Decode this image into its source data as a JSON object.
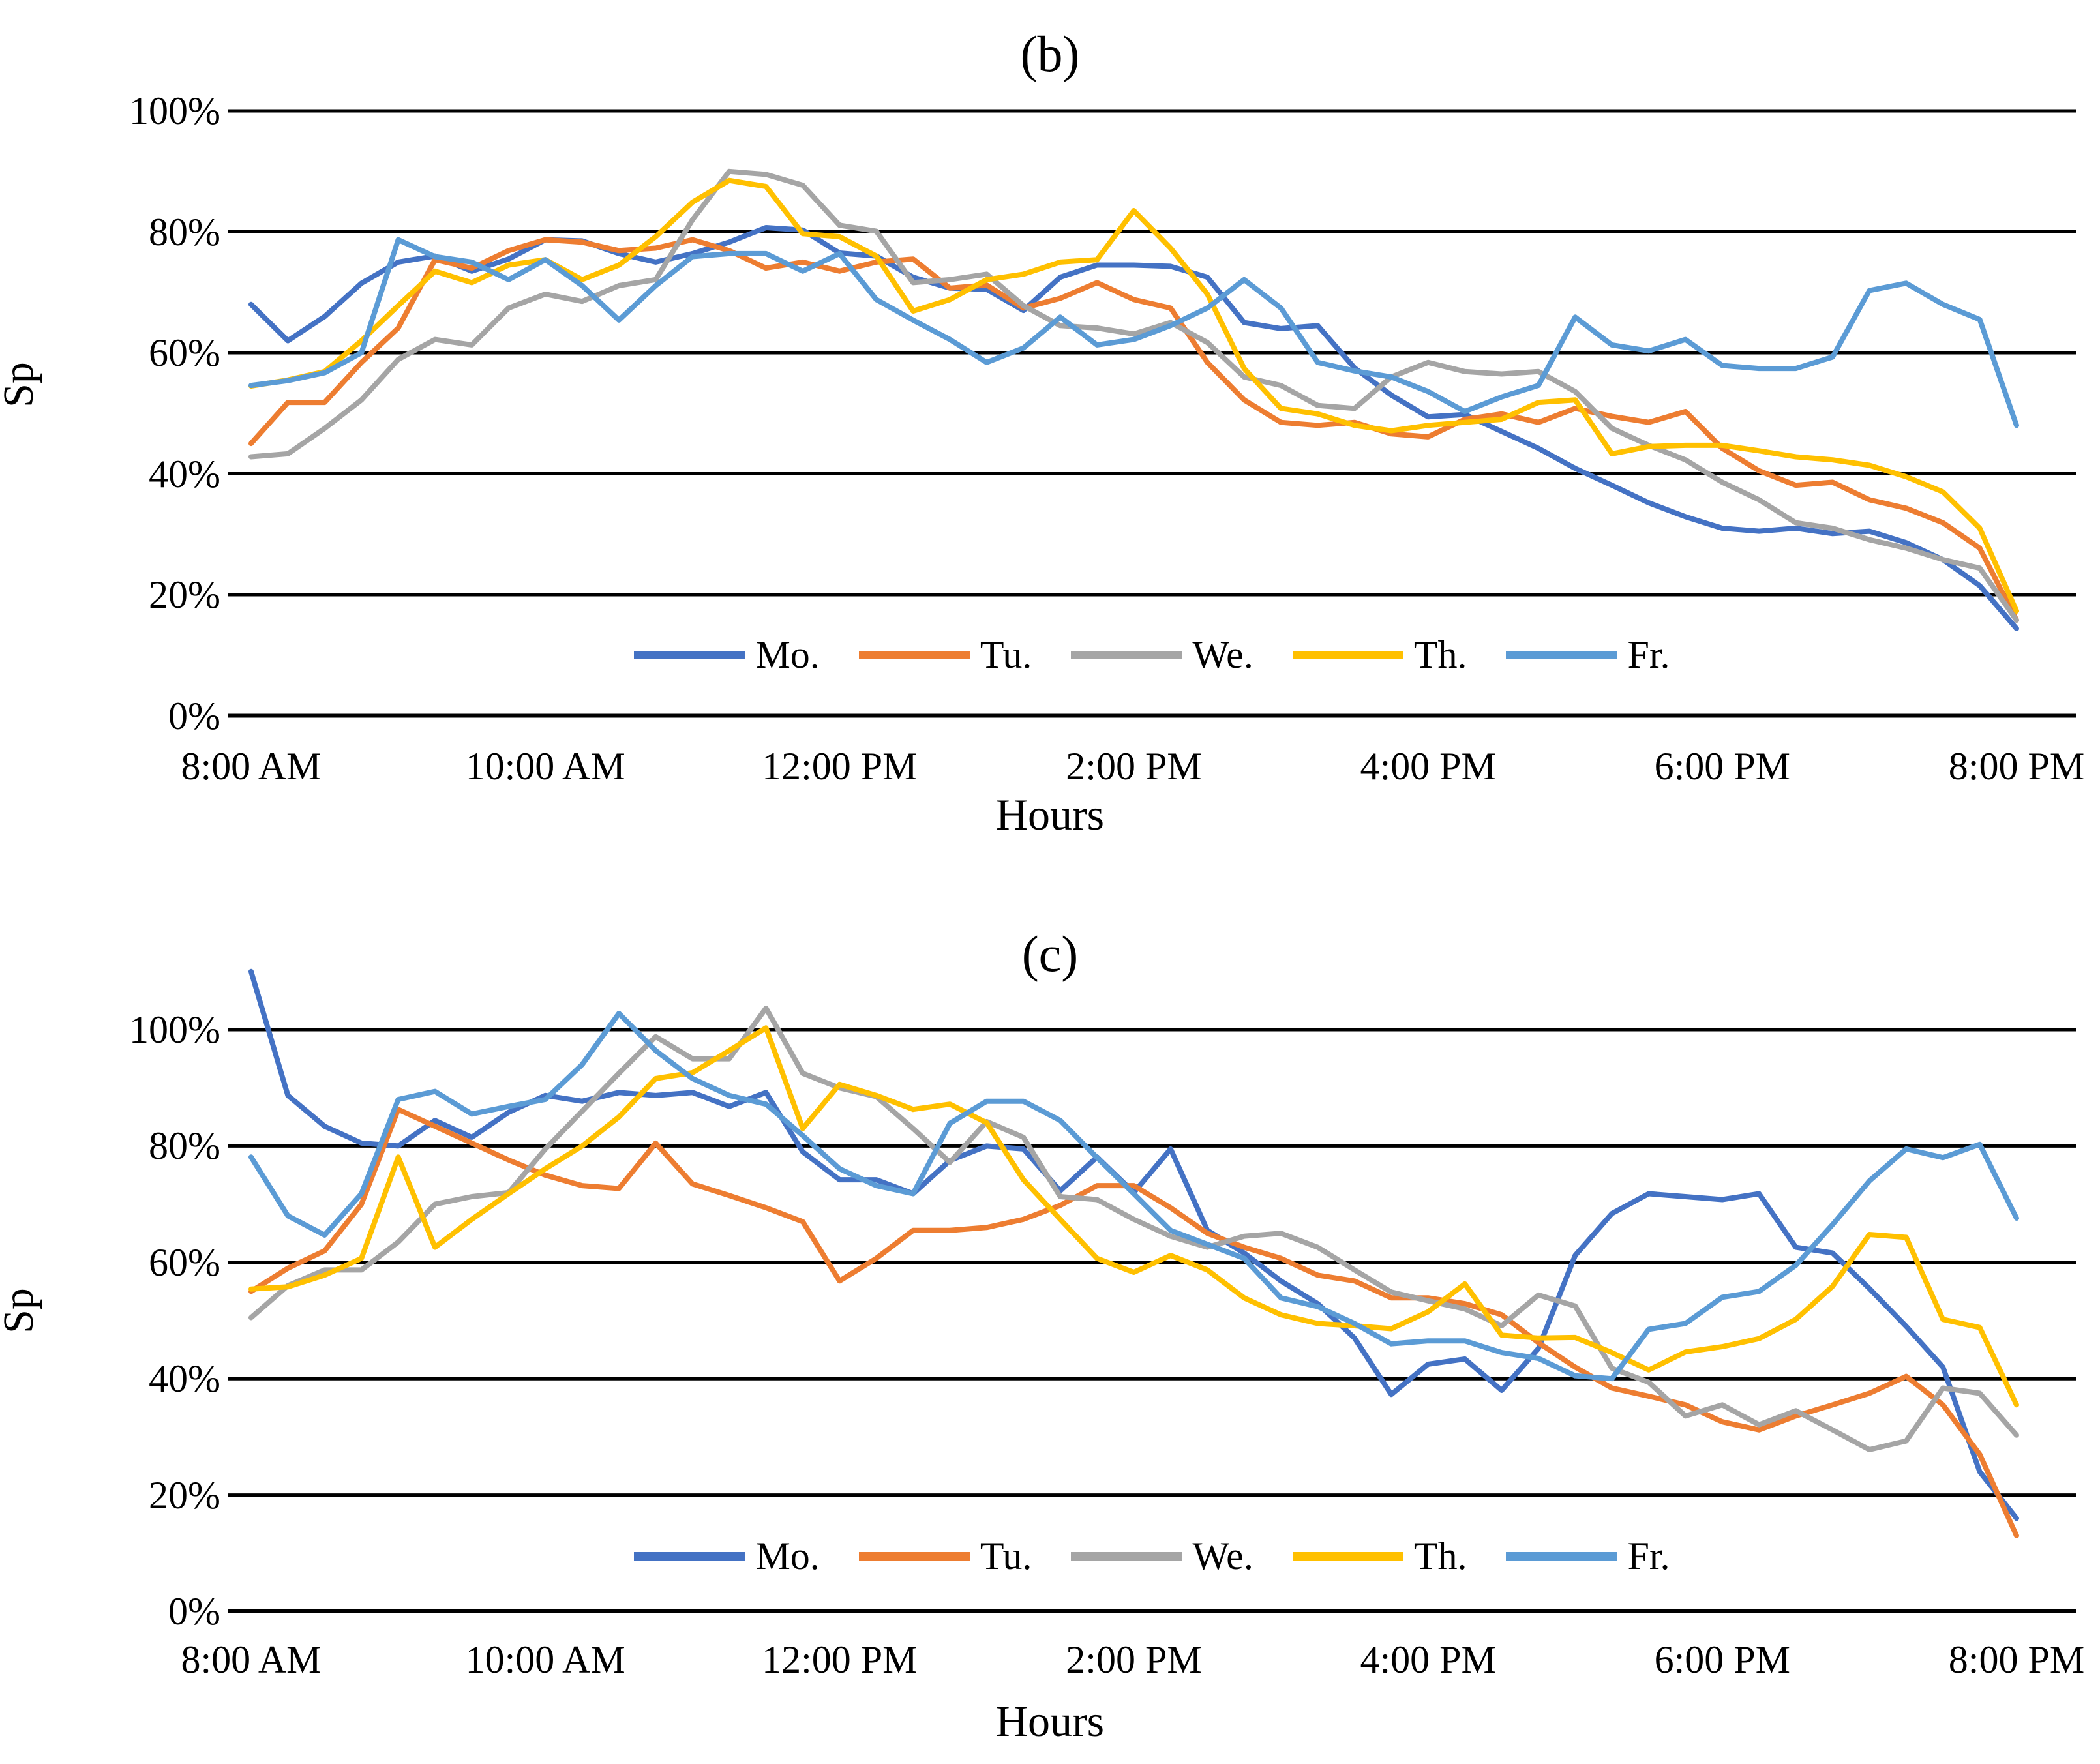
{
  "page": {
    "background": "#ffffff"
  },
  "series_colors": {
    "Mo.": "#4472C4",
    "Tu.": "#ED7D31",
    "We.": "#A5A5A5",
    "Th.": "#FFC000",
    "Fr.": "#5B9BD5"
  },
  "chart_b": {
    "title": "(b)",
    "ylabel": "Sp",
    "xlabel": "Hours"
  },
  "chart_c": {
    "title": "(c)",
    "ylabel": "Sp",
    "xlabel": "Hours"
  },
  "chart_data": [
    {
      "type": "line",
      "id": "b",
      "title": "(b)",
      "xlabel": "Hours",
      "ylabel": "Sp",
      "ylim": [
        0,
        100
      ],
      "y_tick_labels": [
        "100%",
        "80%",
        "60%",
        "40%",
        "20%",
        "0%"
      ],
      "x_tick_labels": [
        "8:00 AM",
        "10:00 AM",
        "12:00 PM",
        "2:00 PM",
        "4:00 PM",
        "6:00 PM",
        "8:00 PM"
      ],
      "grid": "horizontal",
      "legend_position": "inside-bottom",
      "x": [
        "8:00 AM",
        "8:15 AM",
        "8:30 AM",
        "8:45 AM",
        "9:00 AM",
        "9:15 AM",
        "9:30 AM",
        "9:45 AM",
        "10:00 AM",
        "10:15 AM",
        "10:30 AM",
        "10:45 AM",
        "11:00 AM",
        "11:15 AM",
        "11:30 AM",
        "11:45 AM",
        "12:00 PM",
        "12:15 PM",
        "12:30 PM",
        "12:45 PM",
        "1:00 PM",
        "1:15 PM",
        "1:30 PM",
        "1:45 PM",
        "2:00 PM",
        "2:15 PM",
        "2:30 PM",
        "2:45 PM",
        "3:00 PM",
        "3:15 PM",
        "3:30 PM",
        "3:45 PM",
        "4:00 PM",
        "4:15 PM",
        "4:30 PM",
        "4:45 PM",
        "5:00 PM",
        "5:15 PM",
        "5:30 PM",
        "5:45 PM",
        "6:00 PM",
        "6:15 PM",
        "6:30 PM",
        "6:45 PM",
        "7:00 PM",
        "7:15 PM",
        "7:30 PM",
        "7:45 PM",
        "8:00 PM"
      ],
      "series": [
        {
          "name": "Mo.",
          "color": "#4472C4",
          "values": [
            68,
            62,
            66,
            71.5,
            75,
            76,
            73.5,
            75.5,
            78.7,
            78.5,
            76.4,
            75,
            76.4,
            78.3,
            80.7,
            80.3,
            76.5,
            76,
            72.5,
            70.7,
            70.5,
            67,
            72.5,
            74.5,
            74.5,
            74.3,
            72.5,
            65,
            64,
            64.5,
            57.5,
            53,
            49.4,
            49.8,
            47,
            44.2,
            40.9,
            38.1,
            35.2,
            32.9,
            31,
            30.5,
            31,
            30.1,
            30.5,
            28.6,
            25.8,
            21.5,
            14.4
          ]
        },
        {
          "name": "Tu.",
          "color": "#ED7D31",
          "values": [
            45,
            51.8,
            51.8,
            58.4,
            64.1,
            75.4,
            74,
            76.9,
            78.7,
            78.3,
            76.9,
            77.3,
            78.7,
            76.9,
            74,
            75,
            73.5,
            75,
            75.5,
            70.7,
            71.2,
            67.4,
            69,
            71.6,
            68.8,
            67.4,
            58.4,
            52.2,
            48.5,
            48,
            48.5,
            46.6,
            46.1,
            49,
            49.9,
            48.5,
            50.8,
            49.5,
            48.5,
            50.3,
            44.2,
            40.5,
            38.1,
            38.6,
            35.7,
            34.3,
            31.9,
            27.7,
            15.8
          ]
        },
        {
          "name": "We.",
          "color": "#A5A5A5",
          "values": [
            42.8,
            43.3,
            47.5,
            52.2,
            58.9,
            62.2,
            61.3,
            67.4,
            69.7,
            68.5,
            71.1,
            72.1,
            82,
            90,
            89.5,
            87.7,
            81.1,
            80.1,
            71.6,
            72.1,
            73,
            67.8,
            64.5,
            64.1,
            63.1,
            65,
            61.7,
            56,
            54.6,
            51.3,
            50.8,
            56,
            58.4,
            56.9,
            56.5,
            56.9,
            53.6,
            47.5,
            44.7,
            42.3,
            38.6,
            35.7,
            31.9,
            31,
            29.1,
            27.7,
            25.8,
            24.4,
            15.8
          ]
        },
        {
          "name": "Th.",
          "color": "#FFC000",
          "values": [
            54.5,
            55.5,
            56.9,
            62,
            67.8,
            73.5,
            71.6,
            74.5,
            75.4,
            72.1,
            74.5,
            79.2,
            84.9,
            88.5,
            87.5,
            79.7,
            79.2,
            76,
            66.9,
            68.8,
            72.1,
            73,
            75,
            75.4,
            83.5,
            77.3,
            69.7,
            57.4,
            50.8,
            49.9,
            48,
            47.1,
            48,
            48.5,
            49,
            51.8,
            52.2,
            43.3,
            44.5,
            44.7,
            44.7,
            43.8,
            42.8,
            42.3,
            41.4,
            39.5,
            37,
            31,
            17.3
          ]
        },
        {
          "name": "Fr.",
          "color": "#5B9BD5",
          "values": [
            54.6,
            55.4,
            56.7,
            60,
            78.7,
            75.9,
            75,
            72.1,
            75.4,
            71.1,
            65.4,
            71.1,
            75.9,
            76.4,
            76.4,
            73.5,
            76.4,
            68.8,
            65.4,
            62.2,
            58.4,
            60.8,
            65.9,
            61.3,
            62.2,
            64.5,
            67.4,
            72.1,
            67.4,
            58.4,
            57,
            56,
            53.6,
            50.3,
            52.7,
            54.6,
            65.9,
            61.3,
            60.3,
            62.2,
            57.9,
            57.4,
            57.4,
            59.3,
            70.3,
            71.5,
            68,
            65.5,
            48
          ]
        }
      ]
    },
    {
      "type": "line",
      "id": "c",
      "title": "(c)",
      "xlabel": "Hours",
      "ylabel": "Sp",
      "ylim": [
        0,
        100
      ],
      "y_tick_labels": [
        "100%",
        "80%",
        "60%",
        "40%",
        "20%",
        "0%"
      ],
      "x_tick_labels": [
        "8:00 AM",
        "10:00 AM",
        "12:00 PM",
        "2:00 PM",
        "4:00 PM",
        "6:00 PM",
        "8:00 PM"
      ],
      "grid": "horizontal",
      "legend_position": "inside-bottom",
      "x": [
        "8:00 AM",
        "8:15 AM",
        "8:30 AM",
        "8:45 AM",
        "9:00 AM",
        "9:15 AM",
        "9:30 AM",
        "9:45 AM",
        "10:00 AM",
        "10:15 AM",
        "10:30 AM",
        "10:45 AM",
        "11:00 AM",
        "11:15 AM",
        "11:30 AM",
        "11:45 AM",
        "12:00 PM",
        "12:15 PM",
        "12:30 PM",
        "12:45 PM",
        "1:00 PM",
        "1:15 PM",
        "1:30 PM",
        "1:45 PM",
        "2:00 PM",
        "2:15 PM",
        "2:30 PM",
        "2:45 PM",
        "3:00 PM",
        "3:15 PM",
        "3:30 PM",
        "3:45 PM",
        "4:00 PM",
        "4:15 PM",
        "4:30 PM",
        "4:45 PM",
        "5:00 PM",
        "5:15 PM",
        "5:30 PM",
        "5:45 PM",
        "6:00 PM",
        "6:15 PM",
        "6:30 PM",
        "6:45 PM",
        "7:00 PM",
        "7:15 PM",
        "7:30 PM",
        "7:45 PM",
        "8:00 PM"
      ],
      "series": [
        {
          "name": "Mo.",
          "color": "#4472C4",
          "values": [
            110,
            88.7,
            83.4,
            80.5,
            80,
            84.4,
            81.5,
            85.8,
            88.7,
            87.7,
            89.2,
            88.7,
            89.2,
            86.8,
            89.2,
            79,
            74.2,
            74.2,
            71.8,
            77.5,
            80,
            79.5,
            72.3,
            78.1,
            72,
            79.5,
            65.5,
            61.6,
            56.8,
            52.9,
            47,
            37.3,
            42.5,
            43.4,
            38,
            45.2,
            61.2,
            68.4,
            71.8,
            71.3,
            70.8,
            71.8,
            62.6,
            61.6,
            55.5,
            49,
            42,
            24,
            16
          ]
        },
        {
          "name": "Tu.",
          "color": "#ED7D31",
          "values": [
            55,
            59,
            62,
            70,
            86.3,
            83.4,
            80.5,
            77.6,
            75,
            73.2,
            72.7,
            80.5,
            73.5,
            71.5,
            69.4,
            67,
            56.8,
            60.7,
            65.5,
            65.5,
            66,
            67.4,
            69.8,
            73.2,
            73.2,
            69.4,
            65,
            62.6,
            60.7,
            57.8,
            56.8,
            53.9,
            53.9,
            52.9,
            51,
            46.2,
            42,
            38.4,
            37,
            35.5,
            32.6,
            31.2,
            33.6,
            35.5,
            37.5,
            40.4,
            35.5,
            27,
            13
          ]
        },
        {
          "name": "We.",
          "color": "#A5A5A5",
          "values": [
            50.5,
            56,
            58.7,
            58.7,
            63.5,
            70,
            71.3,
            72,
            79.5,
            86,
            92.5,
            98.8,
            95,
            95,
            103.7,
            92.5,
            90,
            88.5,
            83,
            77.2,
            84.2,
            81.5,
            71.3,
            70.8,
            67.4,
            64.5,
            62.6,
            64.5,
            65,
            62.6,
            58.7,
            54.9,
            53.4,
            52,
            49.1,
            54.4,
            52.5,
            41.8,
            39.4,
            33.6,
            35.5,
            32.1,
            34.5,
            31.2,
            27.8,
            29.3,
            38.4,
            37.5,
            30.3
          ]
        },
        {
          "name": "Th.",
          "color": "#FFC000",
          "values": [
            55.4,
            55.8,
            57.8,
            60.7,
            78.1,
            62.6,
            67.4,
            71.8,
            76.1,
            80,
            85,
            91.6,
            92.6,
            96.4,
            100.3,
            83,
            90.6,
            88.7,
            86.3,
            87.2,
            84,
            74.2,
            67.4,
            60.7,
            58.3,
            61.2,
            58.7,
            53.9,
            51,
            49.5,
            49.1,
            48.6,
            51.5,
            56.3,
            47.5,
            47,
            47.1,
            44.5,
            41.5,
            44.6,
            45.5,
            46.9,
            50.2,
            55.9,
            64.8,
            64.3,
            50.2,
            48.8,
            35.5
          ]
        },
        {
          "name": "Fr.",
          "color": "#5B9BD5",
          "values": [
            78.1,
            68,
            64.7,
            71.8,
            88,
            89.4,
            85.5,
            86.8,
            88,
            94,
            102.8,
            96.4,
            91.6,
            88.7,
            87.2,
            81.8,
            76.1,
            73.2,
            71.8,
            83.9,
            87.7,
            87.7,
            84.4,
            78,
            71.8,
            65.5,
            63.1,
            60.7,
            53.9,
            52.4,
            49.5,
            46,
            46.5,
            46.5,
            44.5,
            43.5,
            40.5,
            40,
            48.5,
            49.5,
            54,
            55,
            59.5,
            66.5,
            74,
            79.5,
            78,
            80.3,
            67.6
          ]
        }
      ]
    }
  ]
}
